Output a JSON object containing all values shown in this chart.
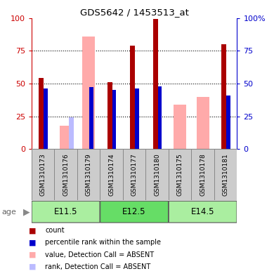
{
  "title": "GDS5642 / 1453513_at",
  "samples": [
    "GSM1310173",
    "GSM1310176",
    "GSM1310179",
    "GSM1310174",
    "GSM1310177",
    "GSM1310180",
    "GSM1310175",
    "GSM1310178",
    "GSM1310181"
  ],
  "count_values": [
    54,
    0,
    0,
    51,
    79,
    99,
    0,
    0,
    80
  ],
  "rank_values": [
    46,
    0,
    47,
    45,
    46,
    48,
    0,
    0,
    41
  ],
  "absent_value_values": [
    0,
    18,
    86,
    0,
    0,
    0,
    34,
    40,
    0
  ],
  "absent_rank_values": [
    0,
    24,
    0,
    0,
    0,
    0,
    0,
    0,
    0
  ],
  "groups": [
    {
      "label": "E11.5",
      "indices": [
        0,
        1,
        2
      ],
      "color": "#aaeea0"
    },
    {
      "label": "E12.5",
      "indices": [
        3,
        4,
        5
      ],
      "color": "#66dd66"
    },
    {
      "label": "E14.5",
      "indices": [
        6,
        7,
        8
      ],
      "color": "#aaeea0"
    }
  ],
  "ylim": [
    0,
    100
  ],
  "yticks": [
    0,
    25,
    50,
    75,
    100
  ],
  "count_color": "#aa0000",
  "rank_color": "#0000cc",
  "absent_value_color": "#ffaaaa",
  "absent_rank_color": "#bbbbff",
  "left_axis_color": "#cc0000",
  "right_axis_color": "#0000cc",
  "sample_cell_color": "#cccccc",
  "sample_cell_edge": "#888888",
  "legend_items": [
    {
      "color": "#aa0000",
      "label": "count"
    },
    {
      "color": "#0000cc",
      "label": "percentile rank within the sample"
    },
    {
      "color": "#ffaaaa",
      "label": "value, Detection Call = ABSENT"
    },
    {
      "color": "#bbbbff",
      "label": "rank, Detection Call = ABSENT"
    }
  ]
}
